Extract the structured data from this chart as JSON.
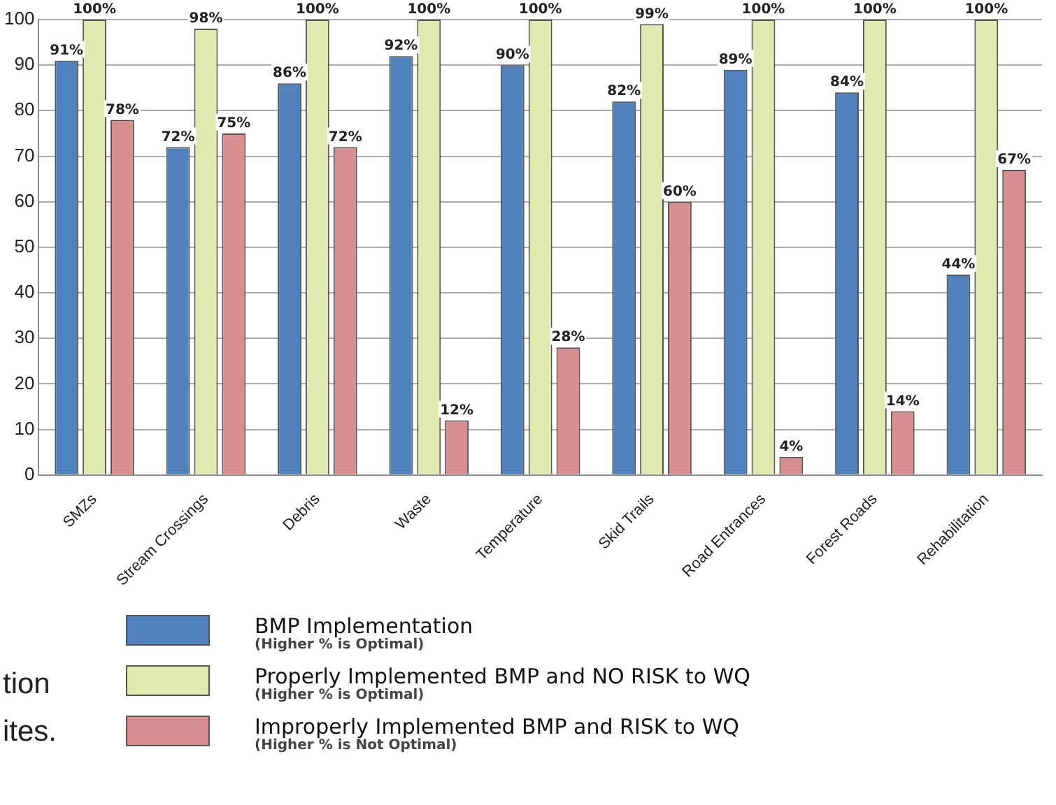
{
  "chart_data": {
    "type": "bar",
    "categories": [
      "SMZs",
      "Stream Crossings",
      "Debris",
      "Waste",
      "Temperature",
      "Skid Trails",
      "Road Entrances",
      "Forest Roads",
      "Rehabilitation"
    ],
    "series": [
      {
        "name": "BMP Implementation",
        "color": "#4f81bd",
        "values": [
          91,
          72,
          86,
          92,
          90,
          82,
          89,
          84,
          44
        ],
        "value_labels": [
          "91%",
          "72%",
          "86%",
          "92%",
          "90%",
          "82%",
          "89%",
          "84%",
          "44%"
        ]
      },
      {
        "name": "Properly Implemented BMP and NO RISK to WQ",
        "color": "#dfe9b0",
        "values": [
          100,
          98,
          100,
          100,
          100,
          99,
          100,
          100,
          100
        ],
        "value_labels": [
          "100%",
          "98%",
          "100%",
          "100%",
          "100%",
          "99%",
          "100%",
          "100%",
          "100%"
        ]
      },
      {
        "name": "Improperly Implemented BMP and RISK to WQ",
        "color": "#d98f8f",
        "values": [
          78,
          75,
          72,
          12,
          28,
          60,
          4,
          14,
          67
        ],
        "value_labels": [
          "78%",
          "75%",
          "72%",
          "12%",
          "28%",
          "60%",
          "4%",
          "14%",
          "67%"
        ]
      }
    ],
    "ylim": [
      0,
      100
    ],
    "yticks": [
      0,
      10,
      20,
      30,
      40,
      50,
      60,
      70,
      80,
      90,
      100
    ],
    "grid": "y",
    "legend": "bottom",
    "annotations": [
      "(Higher % is Optimal)",
      "(Higher % is Optimal)",
      "(Higher % is Not Optimal)",
      "tion",
      "ites."
    ]
  }
}
